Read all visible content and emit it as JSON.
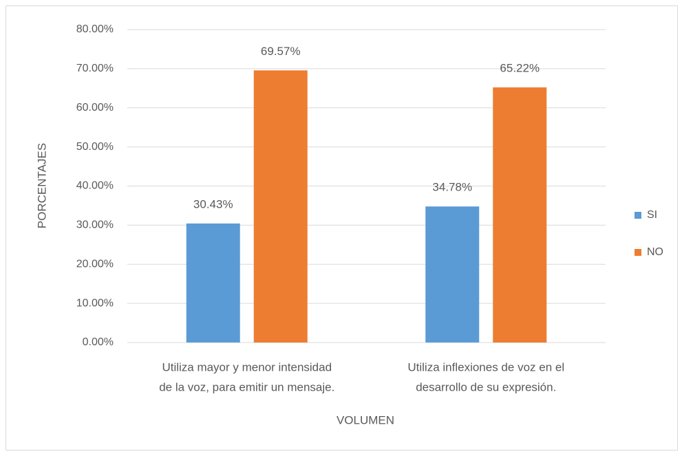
{
  "chart_data": {
    "type": "bar",
    "categories": [
      [
        "Utiliza mayor y menor intensidad",
        "de la voz, para emitir un mensaje."
      ],
      [
        "Utiliza inflexiones de voz en el",
        "desarrollo de su expresión."
      ]
    ],
    "series": [
      {
        "name": "SI",
        "color": "#5b9bd5",
        "values": [
          30.43,
          34.78
        ],
        "value_labels": [
          "30.43%",
          "34.78%"
        ]
      },
      {
        "name": "NO",
        "color": "#ed7d31",
        "values": [
          69.57,
          65.22
        ],
        "value_labels": [
          "69.57%",
          "65.22%"
        ]
      }
    ],
    "ylim": [
      0,
      80
    ],
    "yticks": [
      {
        "value": 0,
        "label": "0.00%"
      },
      {
        "value": 10,
        "label": "10.00%"
      },
      {
        "value": 20,
        "label": "20.00%"
      },
      {
        "value": 30,
        "label": "30.00%"
      },
      {
        "value": 40,
        "label": "40.00%"
      },
      {
        "value": 50,
        "label": "50.00%"
      },
      {
        "value": 60,
        "label": "60.00%"
      },
      {
        "value": 70,
        "label": "70.00%"
      },
      {
        "value": 80,
        "label": "80.00%"
      }
    ],
    "ylabel": "PORCENTAJES",
    "xlabel": "VOLUMEN",
    "grid": true,
    "legend": "right"
  }
}
